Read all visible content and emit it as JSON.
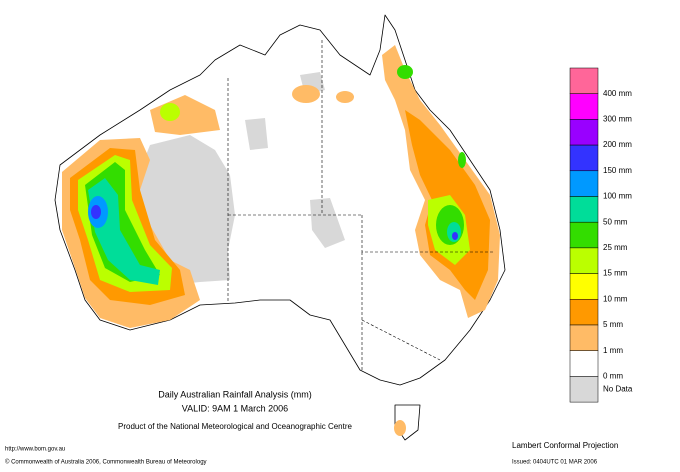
{
  "title": "Daily Australian Rainfall Analysis (mm)",
  "valid": "VALID: 9AM  1 March 2006",
  "product": "Product of the National Meteorological and Oceanographic Centre",
  "url": "http://www.bom.gov.au",
  "copyright": "© Commonwealth of Australia 2006, Commonwealth Bureau of Meteorology",
  "projection": "Lambert Conformal Projection",
  "issued": "Issued: 0404UTC 01 MAR 2006",
  "legend": {
    "colors": [
      "#ff6699",
      "#ff00ff",
      "#9900ff",
      "#3333ff",
      "#0099ff",
      "#00dd99",
      "#33dd00",
      "#bbff00",
      "#ffff00",
      "#ff9900",
      "#ffbb66",
      "#ffffff",
      "#d8d8d8"
    ],
    "labels": [
      "400 mm",
      "300 mm",
      "200 mm",
      "150 mm",
      "100 mm",
      "50 mm",
      "25 mm",
      "15 mm",
      "10 mm",
      "5 mm",
      "1 mm",
      "0 mm",
      "No Data"
    ]
  }
}
